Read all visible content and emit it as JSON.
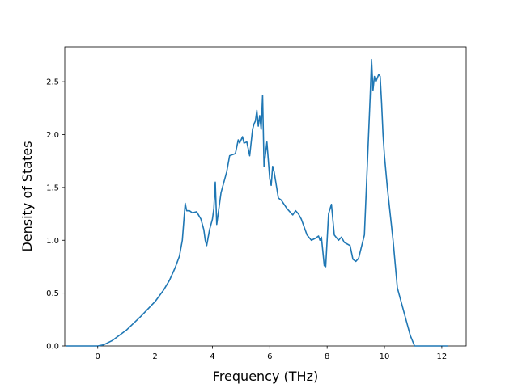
{
  "chart_data": {
    "type": "line",
    "title": "",
    "xlabel": "Frequency (THz)",
    "ylabel": "Density of States",
    "xlim": [
      -1.15,
      12.85
    ],
    "ylim": [
      0,
      2.83
    ],
    "grid": false,
    "legend": "none",
    "line_color": "#1f77b4",
    "xticks": [
      0,
      2,
      4,
      6,
      8,
      10,
      12
    ],
    "yticks": [
      0.0,
      0.5,
      1.0,
      1.5,
      2.0,
      2.5
    ],
    "xtick_labels": [
      "0",
      "2",
      "4",
      "6",
      "8",
      "10",
      "12"
    ],
    "ytick_labels": [
      "0.0",
      "0.5",
      "1.0",
      "1.5",
      "2.0",
      "2.5"
    ],
    "series": [
      {
        "x": [
          -1.1,
          0.0,
          0.2,
          0.5,
          1.0,
          1.5,
          2.0,
          2.3,
          2.5,
          2.7,
          2.85,
          2.95,
          3.05,
          3.1,
          3.2,
          3.3,
          3.45,
          3.6,
          3.7,
          3.75,
          3.8,
          3.9,
          4.0,
          4.05,
          4.1,
          4.15,
          4.3,
          4.5,
          4.6,
          4.8,
          4.9,
          4.95,
          5.05,
          5.1,
          5.2,
          5.3,
          5.4,
          5.45,
          5.5,
          5.55,
          5.6,
          5.65,
          5.7,
          5.75,
          5.8,
          5.9,
          6.0,
          6.05,
          6.1,
          6.15,
          6.3,
          6.4,
          6.55,
          6.6,
          6.8,
          6.9,
          7.0,
          7.1,
          7.3,
          7.45,
          7.6,
          7.7,
          7.75,
          7.8,
          7.9,
          7.95,
          8.05,
          8.15,
          8.25,
          8.4,
          8.5,
          8.6,
          8.8,
          8.9,
          9.0,
          9.1,
          9.3,
          9.4,
          9.5,
          9.55,
          9.6,
          9.65,
          9.7,
          9.8,
          9.85,
          9.9,
          9.95,
          10.0,
          10.1,
          10.3,
          10.45,
          10.55,
          10.7,
          10.9,
          11.05,
          11.1,
          12.2
        ],
        "y": [
          0.0,
          0.0,
          0.01,
          0.05,
          0.15,
          0.28,
          0.42,
          0.53,
          0.62,
          0.74,
          0.85,
          1.0,
          1.35,
          1.28,
          1.28,
          1.26,
          1.27,
          1.2,
          1.1,
          1.0,
          0.95,
          1.1,
          1.2,
          1.3,
          1.55,
          1.15,
          1.45,
          1.65,
          1.8,
          1.82,
          1.95,
          1.92,
          1.98,
          1.92,
          1.93,
          1.8,
          2.05,
          2.1,
          2.13,
          2.23,
          2.08,
          2.18,
          2.05,
          2.37,
          1.7,
          1.93,
          1.58,
          1.52,
          1.7,
          1.65,
          1.4,
          1.38,
          1.32,
          1.3,
          1.24,
          1.28,
          1.25,
          1.2,
          1.05,
          1.0,
          1.02,
          1.04,
          1.0,
          1.03,
          0.76,
          0.75,
          1.25,
          1.34,
          1.05,
          1.0,
          1.03,
          0.98,
          0.95,
          0.82,
          0.8,
          0.83,
          1.05,
          1.7,
          2.35,
          2.71,
          2.42,
          2.55,
          2.5,
          2.57,
          2.55,
          2.3,
          2.0,
          1.8,
          1.5,
          1.0,
          0.55,
          0.45,
          0.3,
          0.1,
          0.0,
          0.0,
          0.0
        ]
      }
    ]
  }
}
